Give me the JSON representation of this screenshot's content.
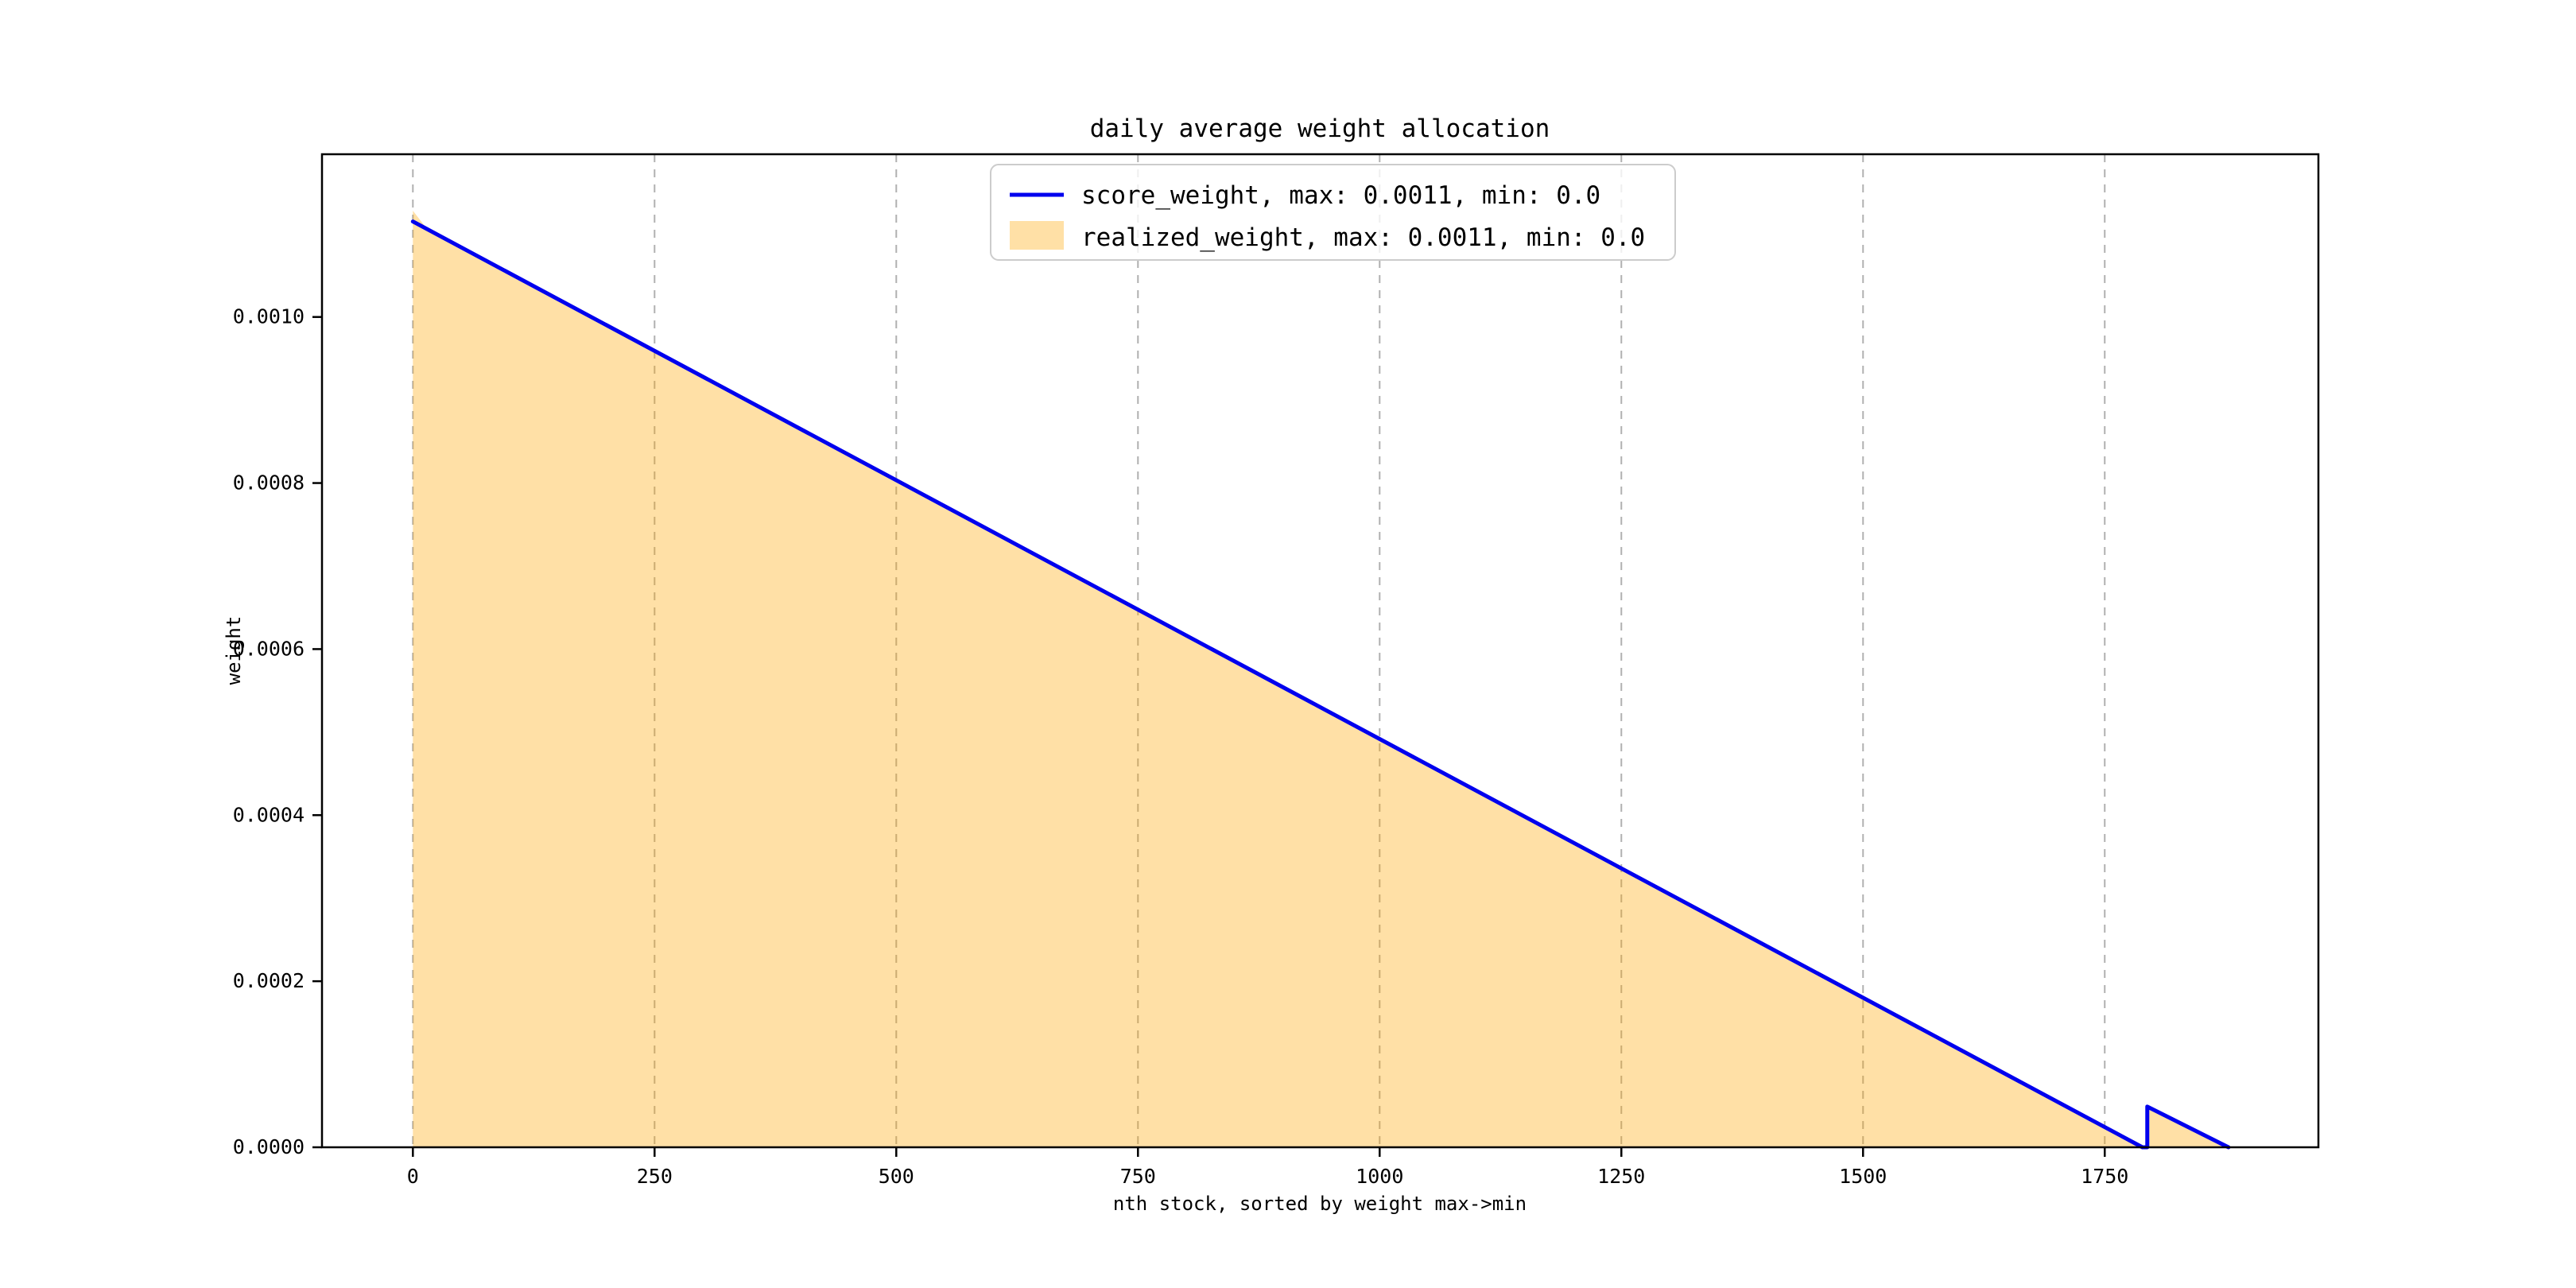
{
  "chart_data": {
    "type": "area",
    "title": "daily average weight allocation",
    "xlabel": "nth stock, sorted by weight max->min",
    "ylabel": "weight",
    "xlim": [
      -94,
      1971
    ],
    "ylim": [
      0,
      0.001196
    ],
    "xticks": [
      0,
      250,
      500,
      750,
      1000,
      1250,
      1500,
      1750
    ],
    "xtick_labels": [
      "0",
      "250",
      "500",
      "750",
      "1000",
      "1250",
      "1500",
      "1750"
    ],
    "yticks": [
      0.0,
      0.0002,
      0.0004,
      0.0006,
      0.0008,
      0.001
    ],
    "ytick_labels": [
      "0.0000",
      "0.0002",
      "0.0004",
      "0.0006",
      "0.0008",
      "0.0010"
    ],
    "grid": {
      "axis": "x",
      "linestyle": "dashed",
      "color": "#b0b0b0"
    },
    "legend": {
      "position": "upper center",
      "entries": [
        {
          "label": "score_weight, max: 0.0011, min: 0.0",
          "marker": "line",
          "color": "#0000ee"
        },
        {
          "label": "realized_weight, max: 0.0011, min: 0.0",
          "marker": "patch",
          "color": "#ffa500",
          "opacity": 0.35
        }
      ]
    },
    "series": [
      {
        "name": "score_weight",
        "type": "line",
        "color": "#0000ee",
        "linewidth": 5,
        "points": [
          [
            0,
            0.001115
          ],
          [
            1789,
            0
          ],
          [
            1794,
            0
          ],
          [
            1794,
            4.9e-05
          ],
          [
            1878,
            0
          ]
        ]
      },
      {
        "name": "realized_weight",
        "type": "area",
        "color": "#ffa500",
        "opacity": 0.35,
        "points": [
          [
            0,
            0.001128
          ],
          [
            14,
            0.001107
          ],
          [
            1789,
            0
          ],
          [
            1794,
            0
          ],
          [
            1794,
            4.9e-05
          ],
          [
            1878,
            0
          ]
        ]
      }
    ]
  },
  "colors": {
    "line_blue": "#0000ee",
    "fill_orange": "#ffa500",
    "grid_gray": "#b0b0b0",
    "legend_border": "#cccccc",
    "spine_black": "#000000"
  }
}
